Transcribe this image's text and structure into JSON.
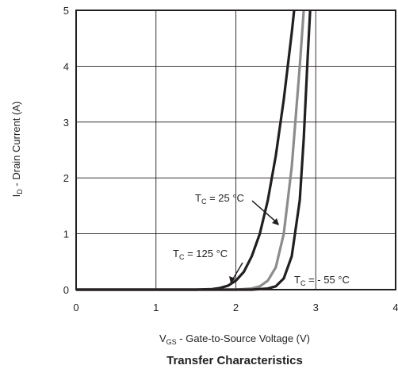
{
  "chart_data": {
    "type": "line",
    "title": "Transfer Characteristics",
    "xlabel": {
      "main": "V",
      "sub": "GS",
      "rest": " - Gate-to-Source Voltage (V)"
    },
    "ylabel": {
      "main": "I",
      "sub": "D",
      "rest": " - Drain Current (A)"
    },
    "xlim": [
      0,
      4
    ],
    "ylim": [
      0,
      5
    ],
    "xticks": [
      "0",
      "1",
      "2",
      "3",
      "4"
    ],
    "yticks": [
      "0",
      "1",
      "2",
      "3",
      "4",
      "5"
    ],
    "grid": true,
    "series": [
      {
        "name": {
          "main": "T",
          "sub": "C",
          "rest": " = 125 °C"
        },
        "color": "#231f20",
        "points": [
          [
            0,
            0
          ],
          [
            1.5,
            0.0
          ],
          [
            1.7,
            0.01
          ],
          [
            1.8,
            0.03
          ],
          [
            1.9,
            0.07
          ],
          [
            2.0,
            0.16
          ],
          [
            2.1,
            0.32
          ],
          [
            2.2,
            0.6
          ],
          [
            2.3,
            1.0
          ],
          [
            2.4,
            1.6
          ],
          [
            2.5,
            2.4
          ],
          [
            2.6,
            3.4
          ],
          [
            2.7,
            4.6
          ],
          [
            2.73,
            5.0
          ]
        ]
      },
      {
        "name": {
          "main": "T",
          "sub": "C",
          "rest": " = 25 °C"
        },
        "color": "#8c8c8c",
        "points": [
          [
            0,
            0
          ],
          [
            2.0,
            0.0
          ],
          [
            2.2,
            0.02
          ],
          [
            2.3,
            0.06
          ],
          [
            2.4,
            0.16
          ],
          [
            2.5,
            0.4
          ],
          [
            2.6,
            1.0
          ],
          [
            2.7,
            2.2
          ],
          [
            2.8,
            4.0
          ],
          [
            2.85,
            5.0
          ]
        ]
      },
      {
        "name": {
          "main": "T",
          "sub": "C",
          "rest": " = - 55 °C"
        },
        "color": "#231f20",
        "points": [
          [
            0,
            0
          ],
          [
            2.2,
            0.0
          ],
          [
            2.4,
            0.02
          ],
          [
            2.5,
            0.06
          ],
          [
            2.6,
            0.2
          ],
          [
            2.7,
            0.6
          ],
          [
            2.8,
            1.6
          ],
          [
            2.85,
            2.7
          ],
          [
            2.9,
            4.2
          ],
          [
            2.93,
            5.0
          ]
        ]
      }
    ]
  }
}
